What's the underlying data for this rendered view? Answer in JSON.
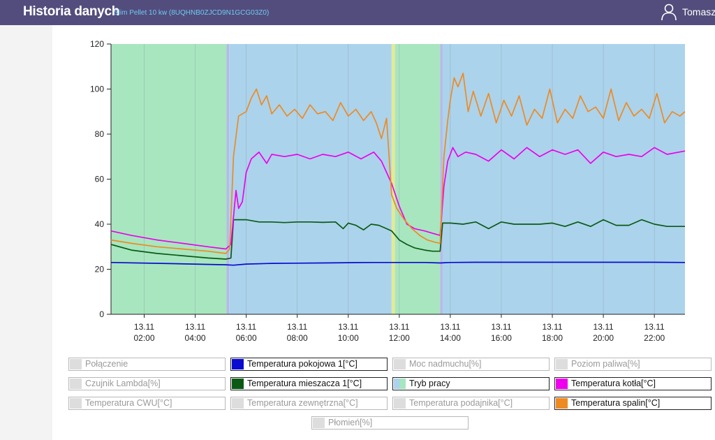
{
  "header": {
    "title": "Historia danych",
    "device": "Slim Pellet 10 kw (8UQHNB0ZJCD9N1GCG03Z0)",
    "user": "Tomasz",
    "user_icon": "user-icon"
  },
  "colors": {
    "header_bg": "#534d7d",
    "mode_green": "#a8e6bf",
    "mode_blue": "#abd3ec",
    "mode_yellow": "#e4ea94",
    "mode_lavender": "#b7b9e8"
  },
  "chart_data": {
    "type": "line",
    "xlim": [
      0.7,
      23.2
    ],
    "ylim": [
      0,
      120
    ],
    "yticks": [
      0,
      20,
      40,
      60,
      80,
      100,
      120
    ],
    "xticks": [
      {
        "x": 2,
        "date": "13.11",
        "time": "02:00"
      },
      {
        "x": 4,
        "date": "13.11",
        "time": "04:00"
      },
      {
        "x": 6,
        "date": "13.11",
        "time": "06:00"
      },
      {
        "x": 8,
        "date": "13.11",
        "time": "08:00"
      },
      {
        "x": 10,
        "date": "13.11",
        "time": "10:00"
      },
      {
        "x": 12,
        "date": "13.11",
        "time": "12:00"
      },
      {
        "x": 14,
        "date": "13.11",
        "time": "14:00"
      },
      {
        "x": 16,
        "date": "13.11",
        "time": "16:00"
      },
      {
        "x": 18,
        "date": "13.11",
        "time": "18:00"
      },
      {
        "x": 20,
        "date": "13.11",
        "time": "20:00"
      },
      {
        "x": 22,
        "date": "13.11",
        "time": "22:00"
      }
    ],
    "grid": "vertical",
    "mode_bands": [
      {
        "start": 0.7,
        "end": 5.23,
        "color": "#a8e6bf"
      },
      {
        "start": 5.23,
        "end": 5.33,
        "color": "#b7b9e8"
      },
      {
        "start": 5.33,
        "end": 11.7,
        "color": "#abd3ec"
      },
      {
        "start": 11.7,
        "end": 11.83,
        "color": "#e4ea94"
      },
      {
        "start": 11.83,
        "end": 13.6,
        "color": "#a8e6bf"
      },
      {
        "start": 13.6,
        "end": 13.7,
        "color": "#b7b9e8"
      },
      {
        "start": 13.7,
        "end": 23.2,
        "color": "#abd3ec"
      }
    ],
    "series": [
      {
        "name": "Temperatura pokojowa 1[°C]",
        "color": "#0a0ad0",
        "x": [
          0.7,
          3,
          5.2,
          5.5,
          6,
          7,
          8,
          9,
          10,
          11,
          12,
          13,
          13.6,
          14,
          15,
          16,
          17,
          18,
          19,
          20,
          21,
          22,
          23.2
        ],
        "y": [
          23,
          22.5,
          22,
          21.8,
          22.3,
          22.6,
          22.7,
          22.8,
          22.9,
          23,
          23,
          23,
          22.8,
          23,
          23.1,
          23.1,
          23.1,
          23.1,
          23.1,
          23.1,
          23.1,
          23.1,
          23
        ]
      },
      {
        "name": "Temperatura mieszacza 1[°C]",
        "color": "#0a5a14",
        "x": [
          0.7,
          1.5,
          2.5,
          3.5,
          4.5,
          5.2,
          5.4,
          5.5,
          6,
          6.5,
          7,
          7.5,
          8,
          8.5,
          9,
          9.5,
          9.8,
          10,
          10.3,
          10.6,
          10.9,
          11.2,
          11.5,
          11.7,
          12,
          12.3,
          12.6,
          13,
          13.3,
          13.6,
          13.7,
          14,
          14.5,
          15,
          15.5,
          16,
          16.5,
          17,
          17.5,
          18,
          18.5,
          19,
          19.5,
          20,
          20.5,
          21,
          21.5,
          22,
          22.5,
          23.2
        ],
        "y": [
          31,
          28.5,
          27,
          26,
          25,
          24.5,
          25,
          42,
          42,
          41,
          41,
          40.7,
          41,
          41,
          40.8,
          41,
          38,
          40.5,
          39.5,
          37.5,
          40,
          39.5,
          38,
          37,
          33,
          31,
          29.5,
          28.5,
          28,
          28,
          40.5,
          40.5,
          40,
          41,
          38,
          41,
          40,
          40,
          40,
          40.5,
          39,
          41,
          39,
          42,
          39.5,
          39.5,
          42,
          40,
          39,
          39
        ]
      },
      {
        "name": "Temperatura kotła[°C]",
        "color": "#ee00ee",
        "x": [
          0.7,
          1.5,
          2.5,
          3.5,
          4.5,
          5.2,
          5.4,
          5.6,
          5.7,
          5.85,
          6,
          6.2,
          6.5,
          6.8,
          7,
          7.5,
          8,
          8.5,
          9,
          9.5,
          10,
          10.5,
          11,
          11.3,
          11.7,
          12,
          12.3,
          12.6,
          13,
          13.3,
          13.6,
          13.75,
          13.9,
          14.1,
          14.3,
          14.6,
          15,
          15.5,
          16,
          16.5,
          17,
          17.5,
          18,
          18.5,
          19,
          19.5,
          20,
          20.5,
          21,
          21.5,
          22,
          22.5,
          23.2
        ],
        "y": [
          37,
          35,
          33,
          31.5,
          30,
          29,
          31,
          55,
          47,
          50,
          63,
          69,
          72,
          67,
          71,
          70,
          71,
          69,
          71,
          70,
          72,
          69,
          72,
          68,
          58,
          48,
          40,
          38,
          37,
          36,
          35,
          57,
          68,
          74,
          70,
          72,
          71,
          68,
          73,
          69,
          74,
          70,
          73,
          71,
          73,
          67,
          72,
          70,
          71,
          70,
          74,
          71,
          72.5
        ]
      },
      {
        "name": "Temperatura spalin[°C]",
        "color": "#ee8a22",
        "x": [
          0.7,
          1.5,
          2.5,
          3.5,
          4.5,
          5.2,
          5.35,
          5.5,
          5.7,
          6,
          6.2,
          6.4,
          6.6,
          6.8,
          7,
          7.3,
          7.6,
          7.9,
          8.2,
          8.5,
          8.8,
          9.1,
          9.4,
          9.7,
          10,
          10.3,
          10.6,
          10.9,
          11.1,
          11.3,
          11.5,
          11.7,
          11.9,
          12.2,
          12.5,
          12.8,
          13.1,
          13.4,
          13.6,
          13.75,
          13.9,
          14,
          14.15,
          14.3,
          14.5,
          14.7,
          14.9,
          15.2,
          15.5,
          15.8,
          16.1,
          16.4,
          16.7,
          17,
          17.3,
          17.6,
          17.9,
          18.2,
          18.5,
          18.8,
          19.1,
          19.4,
          19.7,
          20,
          20.3,
          20.6,
          20.9,
          21.2,
          21.5,
          21.8,
          22.1,
          22.4,
          22.7,
          23,
          23.2
        ],
        "y": [
          33,
          31.5,
          30,
          29,
          28,
          27,
          29,
          70,
          88,
          90,
          96,
          100,
          93,
          97,
          89,
          93,
          88,
          91,
          87,
          93,
          89,
          90,
          86,
          94,
          88,
          91,
          86,
          90,
          85,
          78,
          87,
          53,
          47,
          42,
          38,
          35,
          33,
          32,
          31.5,
          70,
          86,
          95,
          105,
          101,
          107,
          90,
          99,
          88,
          98,
          85,
          95,
          88,
          97,
          84,
          91,
          87,
          100,
          85,
          91,
          87,
          97,
          90,
          92,
          87,
          100,
          86,
          94,
          88,
          91,
          87,
          98,
          85,
          90,
          88,
          90
        ]
      }
    ]
  },
  "legend": [
    {
      "label": "Połączenie",
      "active": false,
      "swatch": "#dddddd"
    },
    {
      "label": "Temperatura pokojowa 1[°C]",
      "active": true,
      "swatch": "#0a0ad0"
    },
    {
      "label": "Moc nadmuchu[%]",
      "active": false,
      "swatch": "#dddddd"
    },
    {
      "label": "Poziom paliwa[%]",
      "active": false,
      "swatch": "#dddddd"
    },
    {
      "label": "Czujnik Lambda[%]",
      "active": false,
      "swatch": "#dddddd"
    },
    {
      "label": "Temperatura mieszacza 1[°C]",
      "active": true,
      "swatch": "#0a5a14"
    },
    {
      "label": "Tryb pracy",
      "active": true,
      "swatch": "split"
    },
    {
      "label": "Temperatura kotła[°C]",
      "active": true,
      "swatch": "#ee00ee"
    },
    {
      "label": "Temperatura CWU[°C]",
      "active": false,
      "swatch": "#dddddd"
    },
    {
      "label": "Temperatura zewnętrzna[°C]",
      "active": false,
      "swatch": "#dddddd"
    },
    {
      "label": "Temperatura podajnika[°C]",
      "active": false,
      "swatch": "#dddddd"
    },
    {
      "label": "Temperatura spalin[°C]",
      "active": true,
      "swatch": "#ee8a22"
    },
    {
      "label": "Płomień[%]",
      "active": false,
      "swatch": "#dddddd"
    }
  ]
}
